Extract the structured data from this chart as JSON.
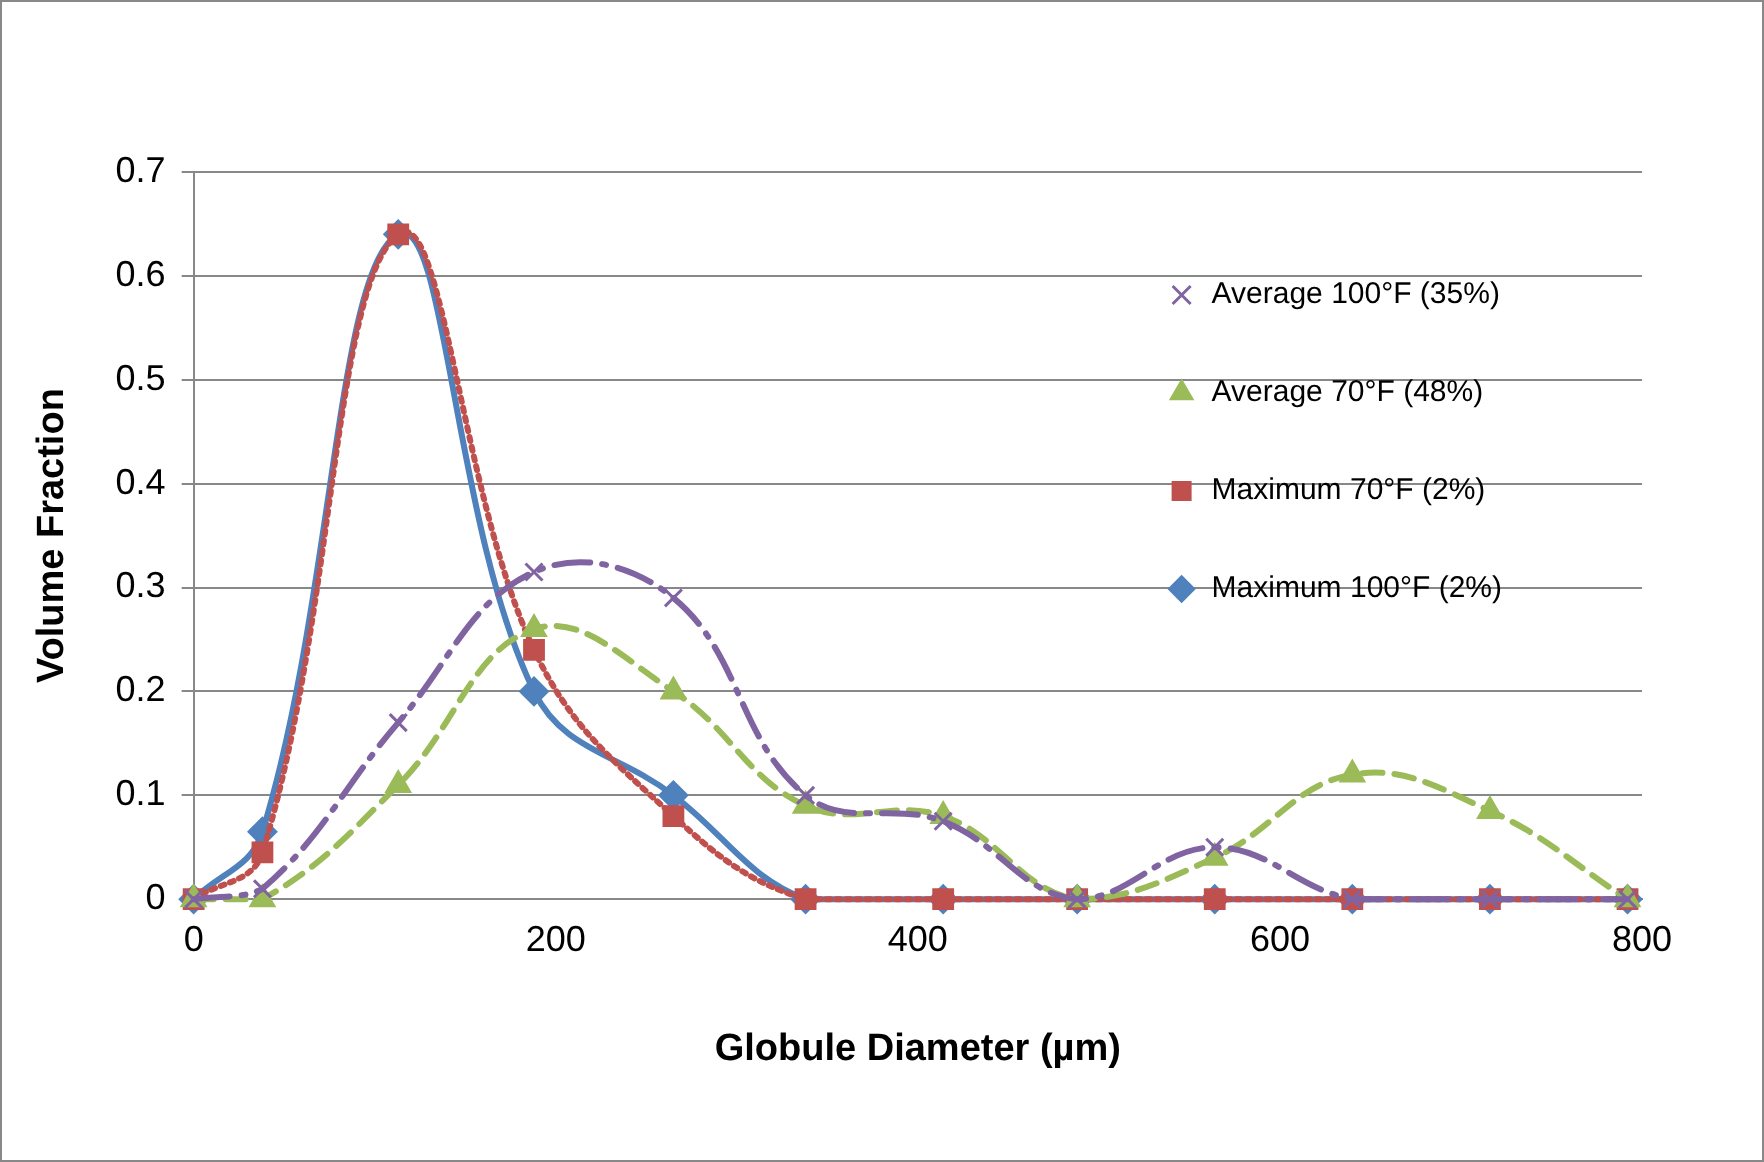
{
  "chart_data": {
    "type": "line",
    "xlabel": "Globule Diameter (µm)",
    "ylabel": "Volume Fraction",
    "x": [
      0,
      38,
      113,
      188,
      265,
      338,
      414,
      488,
      564,
      640,
      716,
      792
    ],
    "xlim": [
      0,
      800
    ],
    "xticks": [
      0,
      200,
      400,
      600,
      800
    ],
    "ylim": [
      0,
      0.7
    ],
    "yticks": [
      0,
      0.1,
      0.2,
      0.3,
      0.4,
      0.5,
      0.6,
      0.7
    ],
    "grid": "y",
    "legend": "top right",
    "series": [
      {
        "name": "Maximum 100°F (2%)",
        "color": "#4f81bd",
        "marker": "diamond",
        "line_style": "solid",
        "values": [
          0,
          0.065,
          0.64,
          0.2,
          0.1,
          0,
          0,
          0,
          0,
          0,
          0,
          0
        ]
      },
      {
        "name": "Maximum 70°F (2%)",
        "color": "#c0504d",
        "marker": "square",
        "line_style": "dotted",
        "values": [
          0,
          0.045,
          0.64,
          0.24,
          0.08,
          0,
          0,
          0,
          0,
          0,
          0,
          0
        ]
      },
      {
        "name": "Average 70°F (48%)",
        "color": "#9bbb59",
        "marker": "triangle",
        "line_style": "dashed",
        "values": [
          0,
          0,
          0.11,
          0.26,
          0.2,
          0.09,
          0.08,
          0,
          0.04,
          0.12,
          0.085,
          0
        ]
      },
      {
        "name": "Average 100°F (35%)",
        "color": "#8064a2",
        "marker": "cross",
        "line_style": "dashdot",
        "values": [
          0,
          0.01,
          0.17,
          0.315,
          0.29,
          0.1,
          0.075,
          0,
          0.05,
          0,
          0,
          0
        ]
      }
    ]
  }
}
